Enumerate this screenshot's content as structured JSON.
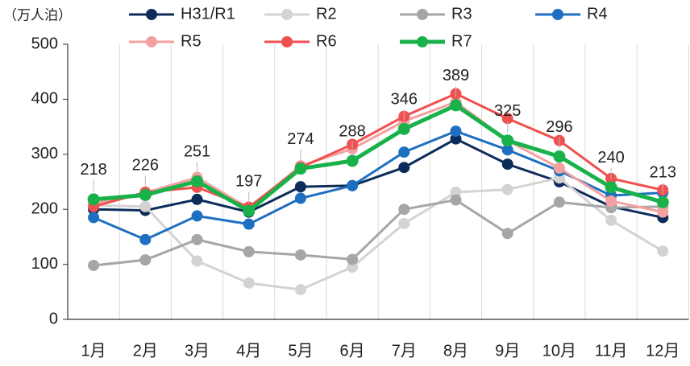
{
  "chart_data": {
    "type": "line",
    "y_label": "（万人泊）",
    "categories": [
      "1月",
      "2月",
      "3月",
      "4月",
      "5月",
      "6月",
      "7月",
      "8月",
      "9月",
      "10月",
      "11月",
      "12月"
    ],
    "series": [
      {
        "name": "H31/R1",
        "color": "#0d2c5a",
        "values": [
          200,
          198,
          218,
          195,
          241,
          243,
          276,
          328,
          282,
          250,
          205,
          185
        ]
      },
      {
        "name": "R2",
        "color": "#d3d3d3",
        "values": [
          207,
          205,
          106,
          66,
          54,
          95,
          174,
          231,
          236,
          257,
          180,
          124
        ]
      },
      {
        "name": "R3",
        "color": "#a6a6a6",
        "values": [
          98,
          108,
          145,
          123,
          117,
          109,
          200,
          217,
          156,
          213,
          203,
          205
        ]
      },
      {
        "name": "R4",
        "color": "#1f6fc0",
        "values": [
          185,
          145,
          188,
          173,
          220,
          243,
          304,
          342,
          308,
          270,
          225,
          230
        ]
      },
      {
        "name": "R5",
        "color": "#f4a0a0",
        "values": [
          210,
          230,
          258,
          202,
          279,
          310,
          360,
          395,
          325,
          275,
          215,
          195
        ]
      },
      {
        "name": "R6",
        "color": "#f0504f",
        "values": [
          205,
          231,
          240,
          204,
          276,
          318,
          369,
          410,
          365,
          325,
          256,
          235
        ]
      },
      {
        "name": "R7",
        "color": "#18b14a",
        "values": [
          218,
          226,
          251,
          197,
          274,
          288,
          346,
          389,
          325,
          296,
          240,
          213
        ],
        "data_labels": true
      }
    ],
    "ylim": [
      0,
      500
    ],
    "yticks": [
      0,
      100,
      200,
      300,
      400,
      500
    ]
  }
}
